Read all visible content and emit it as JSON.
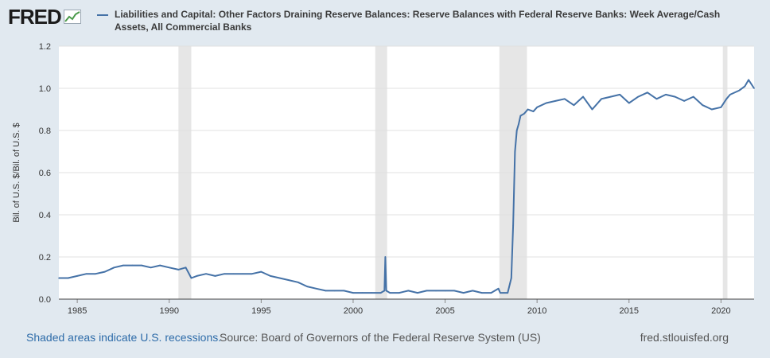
{
  "logo": {
    "text": "FRED",
    "icon": "fred-chart-icon"
  },
  "legend": {
    "label": "Liabilities and Capital: Other Factors Draining Reserve Balances: Reserve Balances with Federal Reserve Banks: Week Average/Cash Assets, All Commercial Banks",
    "color": "#4572a7"
  },
  "footer": {
    "recessions_note": "Shaded areas indicate U.S. recessions.",
    "source": "Source: Board of Governors of the Federal Reserve System (US)",
    "site": "fred.stlouisfed.org"
  },
  "chart_data": {
    "type": "line",
    "ylabel": "Bil. of U.S. $/Bil. of U.S. $",
    "xlabel": "",
    "xlim": [
      1984.0,
      2021.8
    ],
    "ylim": [
      0,
      1.2
    ],
    "xticks": [
      1985,
      1990,
      1995,
      2000,
      2005,
      2010,
      2015,
      2020
    ],
    "yticks": [
      "0.0",
      "0.2",
      "0.4",
      "0.6",
      "0.8",
      "1.0",
      "1.2"
    ],
    "grid": true,
    "recessions": [
      [
        1990.5,
        1991.2
      ],
      [
        2001.2,
        2001.85
      ],
      [
        2007.95,
        2009.45
      ],
      [
        2020.1,
        2020.35
      ]
    ],
    "series": [
      {
        "name": "Liabilities and Capital: Other Factors Draining Reserve Balances: Reserve Balances with Federal Reserve Banks: Week Average/Cash Assets, All Commercial Banks",
        "color": "#4572a7",
        "x": [
          1984.0,
          1984.5,
          1985.0,
          1985.5,
          1986.0,
          1986.5,
          1987.0,
          1987.5,
          1988.0,
          1988.5,
          1989.0,
          1989.5,
          1990.0,
          1990.5,
          1990.9,
          1991.2,
          1991.5,
          1992.0,
          1992.5,
          1993.0,
          1993.5,
          1994.0,
          1994.5,
          1995.0,
          1995.5,
          1996.0,
          1996.5,
          1997.0,
          1997.5,
          1998.0,
          1998.5,
          1999.0,
          1999.5,
          2000.0,
          2000.5,
          2001.0,
          2001.5,
          2001.7,
          2001.75,
          2001.8,
          2002.0,
          2002.5,
          2003.0,
          2003.5,
          2004.0,
          2004.5,
          2005.0,
          2005.5,
          2006.0,
          2006.5,
          2007.0,
          2007.5,
          2007.9,
          2008.0,
          2008.2,
          2008.4,
          2008.6,
          2008.7,
          2008.8,
          2008.9,
          2009.0,
          2009.1,
          2009.3,
          2009.5,
          2009.8,
          2010.0,
          2010.5,
          2011.0,
          2011.5,
          2012.0,
          2012.5,
          2013.0,
          2013.5,
          2014.0,
          2014.5,
          2015.0,
          2015.5,
          2016.0,
          2016.5,
          2017.0,
          2017.5,
          2018.0,
          2018.5,
          2019.0,
          2019.5,
          2020.0,
          2020.3,
          2020.5,
          2021.0,
          2021.3,
          2021.5,
          2021.8
        ],
        "y": [
          0.1,
          0.1,
          0.11,
          0.12,
          0.12,
          0.13,
          0.15,
          0.16,
          0.16,
          0.16,
          0.15,
          0.16,
          0.15,
          0.14,
          0.15,
          0.1,
          0.11,
          0.12,
          0.11,
          0.12,
          0.12,
          0.12,
          0.12,
          0.13,
          0.11,
          0.1,
          0.09,
          0.08,
          0.06,
          0.05,
          0.04,
          0.04,
          0.04,
          0.03,
          0.03,
          0.03,
          0.03,
          0.04,
          0.2,
          0.04,
          0.03,
          0.03,
          0.04,
          0.03,
          0.04,
          0.04,
          0.04,
          0.04,
          0.03,
          0.04,
          0.03,
          0.03,
          0.05,
          0.03,
          0.03,
          0.03,
          0.1,
          0.35,
          0.7,
          0.8,
          0.83,
          0.87,
          0.88,
          0.9,
          0.89,
          0.91,
          0.93,
          0.94,
          0.95,
          0.92,
          0.96,
          0.9,
          0.95,
          0.96,
          0.97,
          0.93,
          0.96,
          0.98,
          0.95,
          0.97,
          0.96,
          0.94,
          0.96,
          0.92,
          0.9,
          0.91,
          0.95,
          0.97,
          0.99,
          1.01,
          1.04,
          1.0
        ]
      }
    ]
  }
}
